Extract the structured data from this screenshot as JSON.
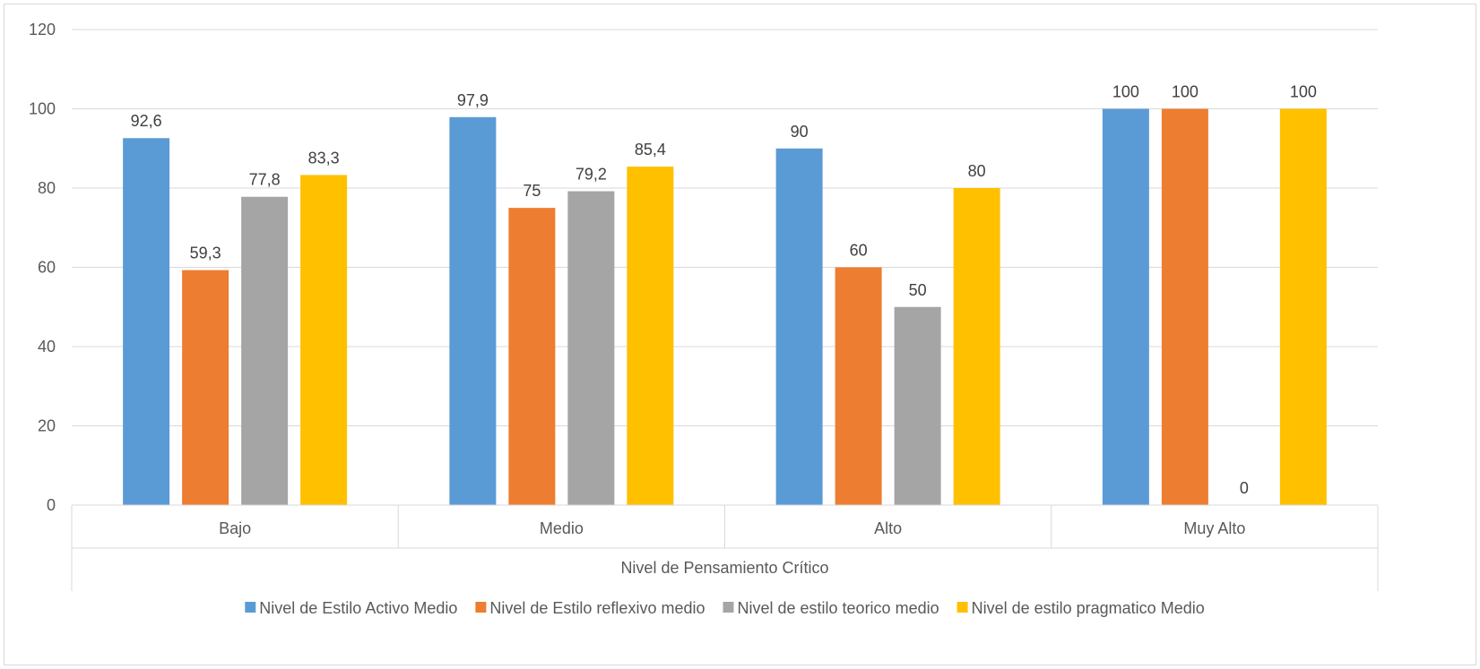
{
  "chart_data": {
    "type": "bar",
    "xlabel": "Nivel de Pensamiento Crítico",
    "ylabel": "",
    "ylim": [
      0,
      120
    ],
    "yticks": [
      0,
      20,
      40,
      60,
      80,
      100,
      120
    ],
    "grid": true,
    "legend_position": "bottom",
    "categories": [
      "Bajo",
      "Medio",
      "Alto",
      "Muy Alto"
    ],
    "series": [
      {
        "name": "Nivel de Estilo Activo Medio",
        "color": "#5b9bd5",
        "values": [
          92.6,
          97.9,
          90,
          100
        ],
        "labels": [
          "92,6",
          "97,9",
          "90",
          "100"
        ]
      },
      {
        "name": "Nivel de Estilo reflexivo medio",
        "color": "#ed7d31",
        "values": [
          59.3,
          75,
          60,
          100
        ],
        "labels": [
          "59,3",
          "75",
          "60",
          "100"
        ]
      },
      {
        "name": "Nivel de estilo teorico medio",
        "color": "#a5a5a5",
        "values": [
          77.8,
          79.2,
          50,
          0
        ],
        "labels": [
          "77,8",
          "79,2",
          "50",
          "0"
        ]
      },
      {
        "name": "Nivel de estilo pragmatico Medio",
        "color": "#ffc000",
        "values": [
          83.3,
          85.4,
          80,
          100
        ],
        "labels": [
          "83,3",
          "85,4",
          "80",
          "100"
        ]
      }
    ]
  }
}
